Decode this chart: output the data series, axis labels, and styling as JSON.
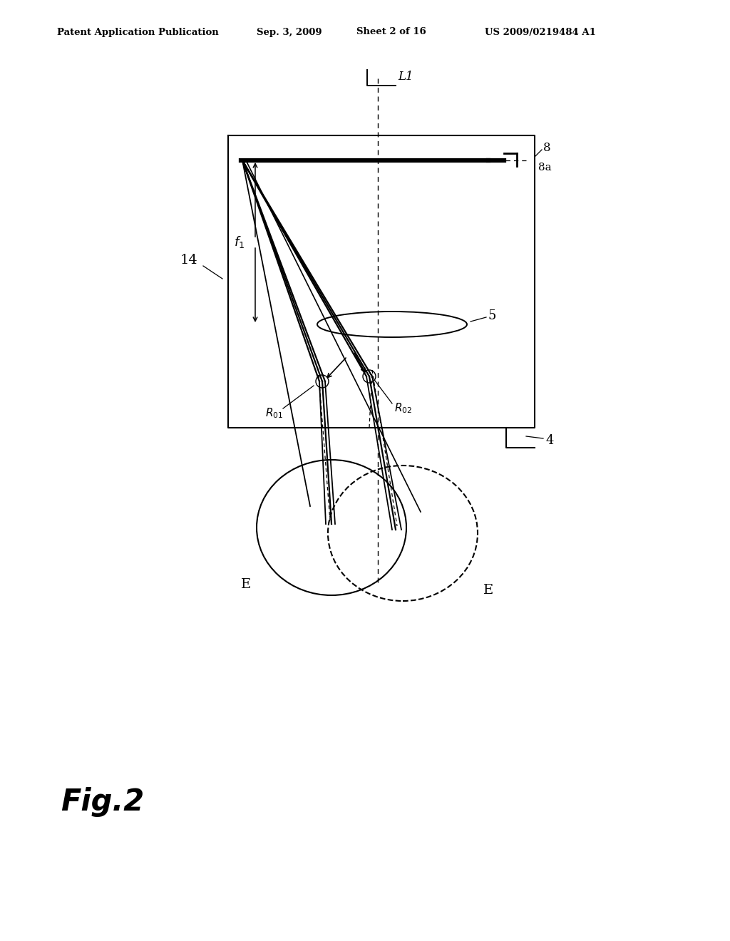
{
  "bg_color": "#ffffff",
  "header_text": "Patent Application Publication",
  "header_date": "Sep. 3, 2009",
  "header_sheet": "Sheet 2 of 16",
  "header_patent": "US 2009/0219484 A1",
  "fig_label": "Fig.2",
  "label_L1": "L1",
  "label_14": "14",
  "label_f1": "f1",
  "label_5": "5",
  "label_4": "4",
  "label_8": "8",
  "label_8a": "8a",
  "label_R01": "R01",
  "label_R02": "R02",
  "label_E": "E"
}
